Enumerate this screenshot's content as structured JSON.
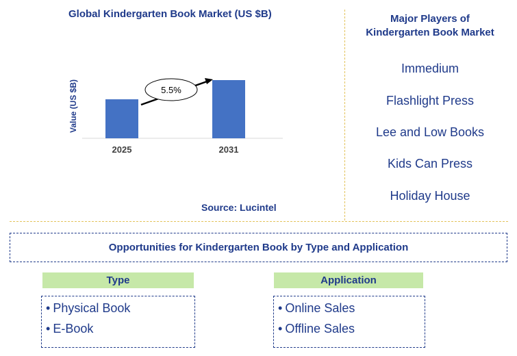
{
  "chart_data": {
    "type": "bar",
    "title": "Global Kindergarten Book Market (US $B)",
    "ylabel": "Value (US $B)",
    "xlabel": "",
    "categories": [
      "2025",
      "2031"
    ],
    "values": [
      0.67,
      1.0
    ],
    "annotation": "5.5%",
    "bar_color": "#4472c4",
    "source": "Source: Lucintel"
  },
  "players": {
    "title_line1": "Major Players of",
    "title_line2": "Kindergarten Book Market",
    "items": [
      "Immedium",
      "Flashlight Press",
      "Lee and Low Books",
      "Kids Can Press",
      "Holiday House"
    ]
  },
  "opportunities": {
    "title": "Opportunities for Kindergarten Book by Type and Application",
    "type_header": "Type",
    "type_items": [
      "Physical Book",
      "E-Book"
    ],
    "application_header": "Application",
    "application_items": [
      "Online Sales",
      "Offline Sales"
    ]
  },
  "colors": {
    "text": "#1f3a8a",
    "bar": "#4472c4",
    "divider": "#e3c25a",
    "header_bg": "#c6e8a8"
  }
}
